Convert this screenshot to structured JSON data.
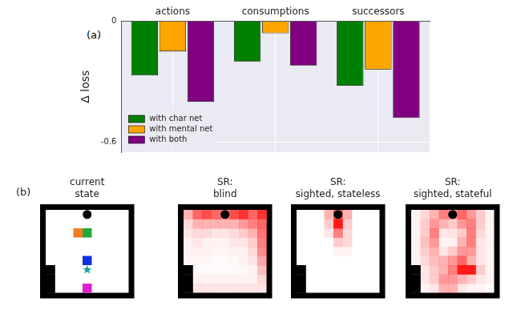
{
  "chart_data": {
    "type": "bar",
    "annotations": [
      "(a)"
    ],
    "y_label": "Δ loss",
    "categories": [
      "actions",
      "consumptions",
      "successors"
    ],
    "series": [
      {
        "name": "with char net",
        "color": "#008000",
        "values": [
          -0.27,
          -0.2,
          -0.32
        ]
      },
      {
        "name": "with mental net",
        "color": "#ffa500",
        "values": [
          -0.15,
          -0.06,
          -0.24
        ]
      },
      {
        "name": "with both",
        "color": "#800080",
        "values": [
          -0.4,
          -0.22,
          -0.48
        ]
      }
    ],
    "ylim": [
      -0.65,
      0
    ],
    "yticks": [
      -0.6,
      0
    ],
    "grid": true,
    "legend": "lower left"
  },
  "grid_figure": {
    "label": "(b)",
    "rows": 9,
    "cols": 9,
    "walls": [
      [
        6,
        0
      ],
      [
        7,
        0
      ],
      [
        8,
        0
      ]
    ],
    "agent": {
      "shape": "circle",
      "color": "#000000",
      "row": 0,
      "col": 4
    },
    "objects": [
      {
        "shape": "square",
        "color": "#f47c20",
        "row": 2,
        "col": 3
      },
      {
        "shape": "square",
        "color": "#22a83a",
        "row": 2,
        "col": 4
      },
      {
        "shape": "square",
        "color": "#1030e0",
        "row": 5,
        "col": 4
      },
      {
        "shape": "star",
        "color": "#1aa39a",
        "row": 6,
        "col": 4
      },
      {
        "shape": "square",
        "color": "#e020d0",
        "row": 8,
        "col": 4
      }
    ],
    "panels": [
      {
        "title": "current state"
      },
      {
        "title": "SR: blind",
        "sr": [
          [
            0.3,
            0.6,
            0.7,
            0.6,
            0.5,
            0.7,
            0.8,
            0.6,
            0.8
          ],
          [
            0.15,
            0.3,
            0.3,
            0.3,
            0.3,
            0.3,
            0.4,
            0.5,
            0.6
          ],
          [
            0.1,
            0.15,
            0.15,
            0.1,
            0.1,
            0.15,
            0.2,
            0.3,
            0.55
          ],
          [
            0.05,
            0.1,
            0.05,
            0.05,
            0.05,
            0.1,
            0.1,
            0.2,
            0.5
          ],
          [
            0.05,
            0.05,
            0.05,
            0.03,
            0.03,
            0.05,
            0.05,
            0.15,
            0.45
          ],
          [
            0.03,
            0.03,
            0.03,
            0.02,
            0.02,
            0.03,
            0.05,
            0.1,
            0.35
          ],
          [
            0,
            0.02,
            0.02,
            0.02,
            0.02,
            0.02,
            0.03,
            0.05,
            0.25
          ],
          [
            0,
            0.05,
            0.05,
            0.05,
            0.05,
            0.05,
            0.05,
            0.05,
            0.15
          ],
          [
            0,
            0.1,
            0.1,
            0.1,
            0.1,
            0.1,
            0.1,
            0.1,
            0.1
          ]
        ]
      },
      {
        "title": "SR: sighted, stateless",
        "sr": [
          [
            0,
            0,
            0,
            0.3,
            0.6,
            0.3,
            0,
            0,
            0
          ],
          [
            0,
            0,
            0,
            0.2,
            0.9,
            0.2,
            0,
            0,
            0
          ],
          [
            0,
            0,
            0,
            0.1,
            0.5,
            0.15,
            0,
            0,
            0
          ],
          [
            0,
            0,
            0,
            0,
            0.2,
            0.15,
            0,
            0,
            0
          ],
          [
            0,
            0,
            0,
            0,
            0.05,
            0.05,
            0,
            0,
            0
          ],
          [
            0,
            0,
            0,
            0,
            0,
            0,
            0,
            0,
            0
          ],
          [
            0,
            0,
            0,
            0,
            0,
            0,
            0,
            0,
            0
          ],
          [
            0,
            0,
            0,
            0,
            0,
            0,
            0,
            0,
            0
          ],
          [
            0,
            0,
            0,
            0,
            0,
            0,
            0,
            0,
            0
          ]
        ]
      },
      {
        "title": "SR: sighted, stateful",
        "sr": [
          [
            0.05,
            0.15,
            0.3,
            0.5,
            0.4,
            0.6,
            0.4,
            0.2,
            0.05
          ],
          [
            0.05,
            0.2,
            0.4,
            0.3,
            0.2,
            0.4,
            0.5,
            0.2,
            0.05
          ],
          [
            0.05,
            0.2,
            0.5,
            0.1,
            0.1,
            0.2,
            0.5,
            0.15,
            0.05
          ],
          [
            0.05,
            0.25,
            0.4,
            0.05,
            0.05,
            0.3,
            0.5,
            0.1,
            0.05
          ],
          [
            0.05,
            0.2,
            0.3,
            0.1,
            0.2,
            0.4,
            0.4,
            0.1,
            0.05
          ],
          [
            0.05,
            0.15,
            0.25,
            0.3,
            0.4,
            0.6,
            0.3,
            0.1,
            0.05
          ],
          [
            0,
            0.1,
            0.2,
            0.3,
            0.5,
            0.9,
            0.9,
            0.2,
            0.05
          ],
          [
            0,
            0.1,
            0.2,
            0.4,
            0.4,
            0.3,
            0.2,
            0.1,
            0.05
          ],
          [
            0,
            0.05,
            0.1,
            0.3,
            0.3,
            0.1,
            0.05,
            0.05,
            0
          ]
        ]
      }
    ]
  }
}
